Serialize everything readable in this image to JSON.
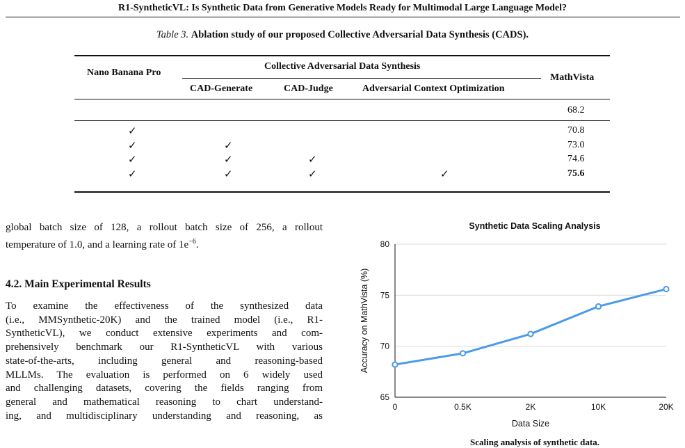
{
  "header": {
    "title": "R1-SyntheticVL: Is Synthetic Data from Generative Models Ready for Multimodal Large Language Model?"
  },
  "table": {
    "label": "Table 3.",
    "caption": "Ablation study of our proposed Collective Adversarial Data Synthesis (CADS).",
    "col_nano": "Nano Banana Pro",
    "group_header": "Collective Adversarial Data Synthesis",
    "col_generate": "CAD-Generate",
    "col_judge": "CAD-Judge",
    "col_aco": "Adversarial Context Optimization",
    "col_mathvista": "MathVista",
    "check_symbol": "✓",
    "rows": [
      {
        "nano": false,
        "generate": false,
        "judge": false,
        "aco": false,
        "mathvista": "68.2",
        "best": false
      },
      {
        "nano": true,
        "generate": false,
        "judge": false,
        "aco": false,
        "mathvista": "70.8",
        "best": false
      },
      {
        "nano": true,
        "generate": true,
        "judge": false,
        "aco": false,
        "mathvista": "73.0",
        "best": false
      },
      {
        "nano": true,
        "generate": true,
        "judge": true,
        "aco": false,
        "mathvista": "74.6",
        "best": false
      },
      {
        "nano": true,
        "generate": true,
        "judge": true,
        "aco": true,
        "mathvista": "75.6",
        "best": true
      }
    ]
  },
  "body": {
    "intro_line1": "global batch size of 128, a rollout batch size of 256, a rollout",
    "intro_line2_prefix": "temperature of 1.0, and a learning rate of 1e",
    "intro_line2_exp": "−6",
    "intro_line2_suffix": ".",
    "section_heading": "4.2. Main Experimental Results",
    "paragraph_lines": [
      "To examine the effectiveness of the synthesized data",
      "(i.e., MMSynthetic-20K) and the trained model (i.e., R1-",
      "SyntheticVL), we conduct extensive experiments and com-",
      "prehensively benchmark our R1-SyntheticVL with various",
      "state-of-the-arts, including general and reasoning-based",
      "MLLMs. The evaluation is performed on 6 widely used",
      "and challenging datasets, covering the fields ranging from",
      "general and mathematical reasoning to chart understand-",
      "ing, and multidisciplinary understanding and reasoning, as"
    ]
  },
  "figure": {
    "caption": "Scaling analysis of synthetic data."
  },
  "chart_data": {
    "type": "line",
    "title": "Synthetic Data Scaling Analysis",
    "xlabel": "Data Size",
    "ylabel": "Accuracy on MathVista  (%)",
    "categories": [
      "0",
      "0.5K",
      "2K",
      "10K",
      "20K"
    ],
    "values": [
      68.2,
      69.3,
      71.2,
      73.9,
      75.6
    ],
    "ylim": [
      65,
      80
    ],
    "yticks": [
      "65",
      "70",
      "75",
      "80"
    ],
    "grid": true,
    "color": "#4a9be8"
  }
}
